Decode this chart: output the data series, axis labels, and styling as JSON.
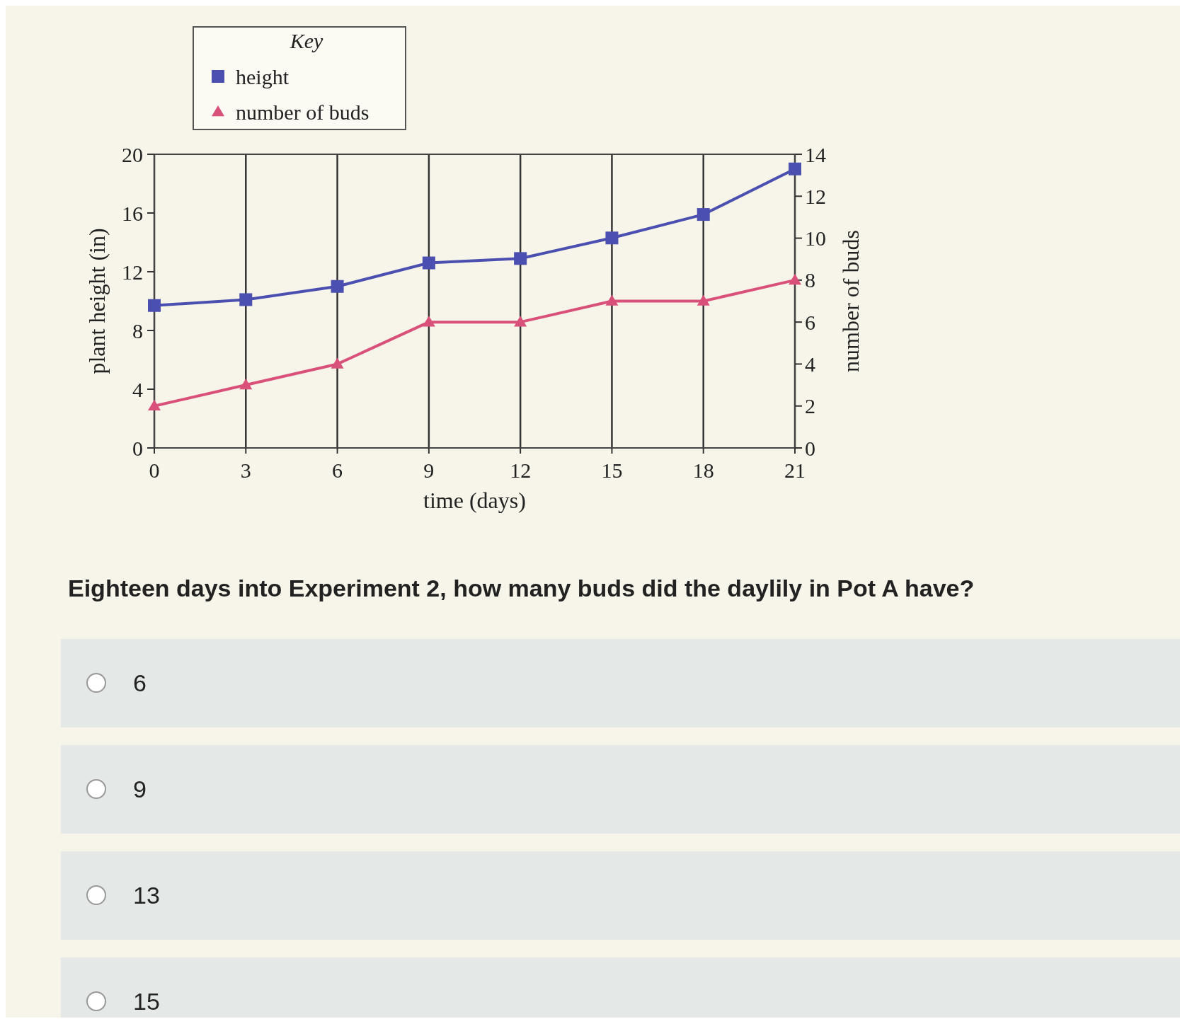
{
  "chart_data": {
    "type": "line",
    "xlabel": "time (days)",
    "ylabel": "plant height (in)",
    "y2label": "number of buds",
    "legend_title": "Key",
    "legend": "top left",
    "grid": "x",
    "x": [
      0,
      3,
      6,
      9,
      12,
      15,
      18,
      21
    ],
    "series": [
      {
        "name": "height",
        "color": "#4a4fb0",
        "marker": "square",
        "values": [
          9.7,
          10.1,
          11,
          12.6,
          12.9,
          14.3,
          15.9,
          19
        ]
      },
      {
        "name": "number of buds",
        "color": "#d9507a",
        "marker": "triangle",
        "axis": "y2",
        "values": [
          2,
          3,
          4,
          6,
          6,
          7,
          7,
          8
        ]
      }
    ],
    "xlim": [
      0,
      21
    ],
    "xticks": [
      0,
      3,
      6,
      9,
      12,
      15,
      18,
      21
    ],
    "ylim": [
      0,
      20
    ],
    "yticks": [
      0,
      4,
      8,
      12,
      16,
      20
    ],
    "y2lim": [
      0,
      14
    ],
    "y2ticks": [
      0,
      2,
      4,
      6,
      8,
      10,
      12,
      14
    ],
    "line_style": "solid",
    "annotations": [
      "Eighteen days into Experiment 2, how many buds did the daylily in Pot A have?",
      "6",
      "9",
      "13",
      "15"
    ]
  }
}
